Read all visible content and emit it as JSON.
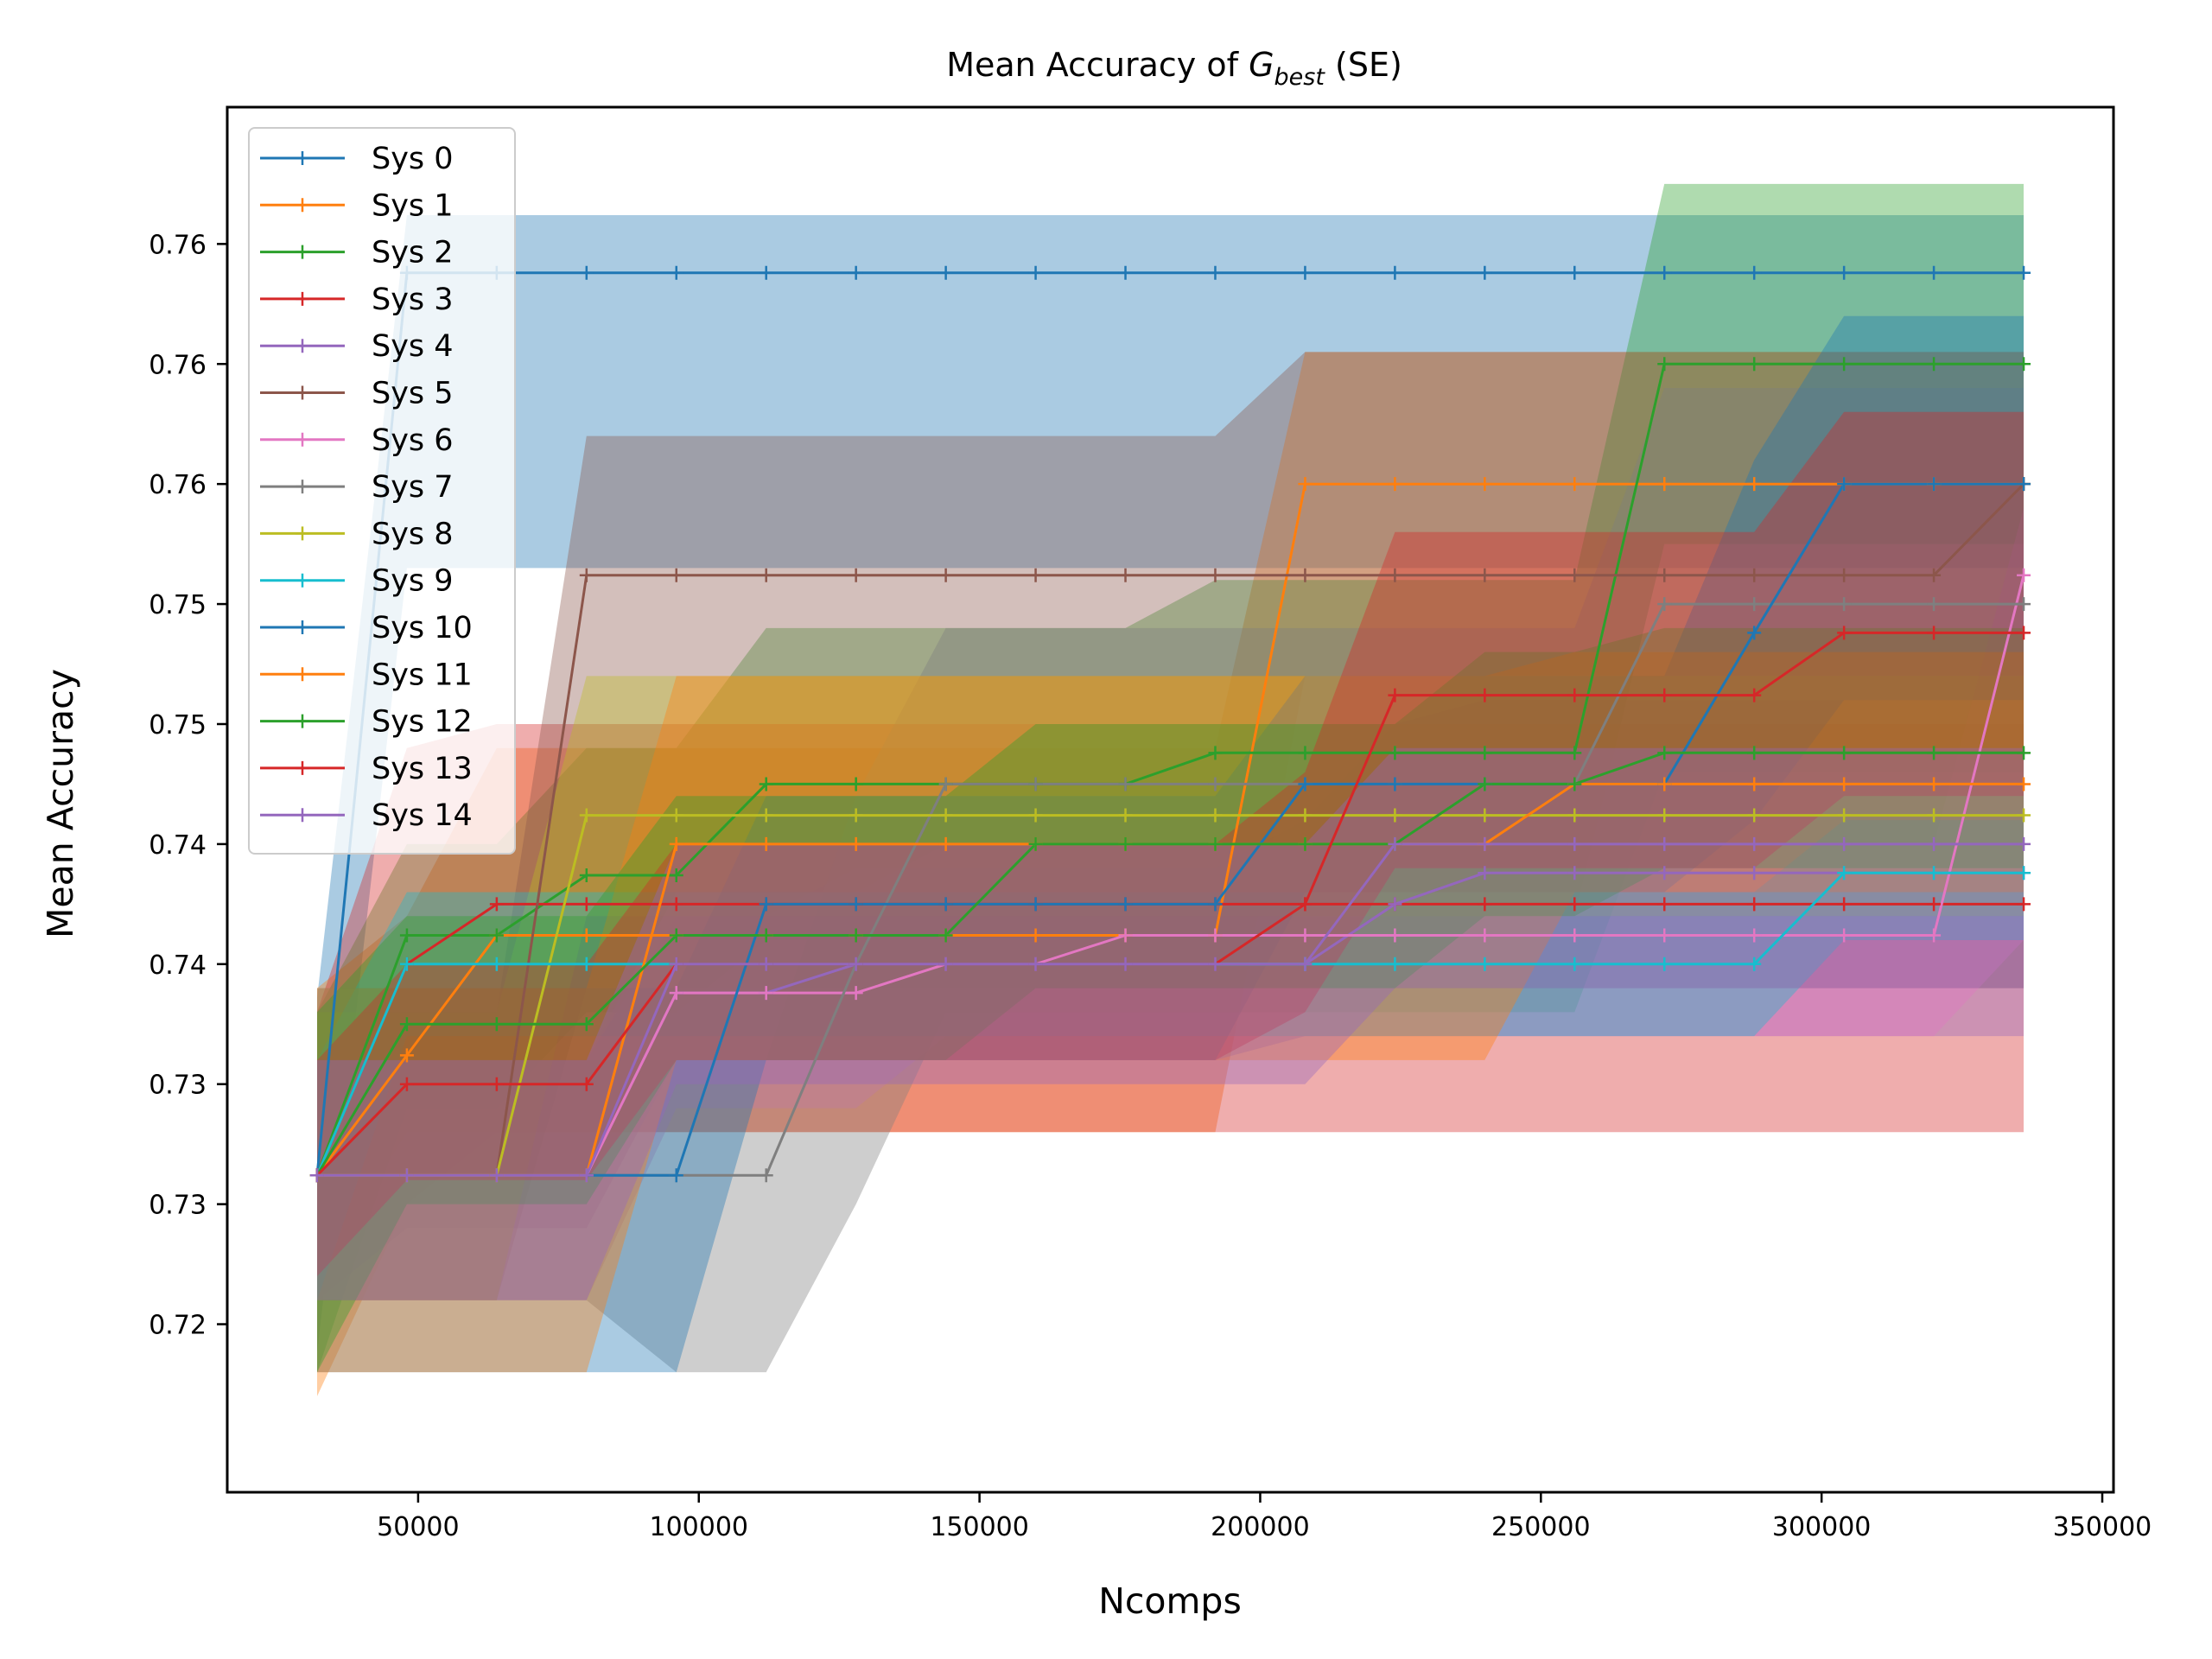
{
  "chart_data": {
    "type": "line",
    "title": {
      "main": "Mean Accuracy of ",
      "sym": "G",
      "sub": "best",
      "tail": "  (SE)"
    },
    "xlabel": "Ncomps",
    "ylabel": "Mean Accuracy",
    "xlim": [
      16000,
      352000
    ],
    "ylim": [
      0.713,
      0.7707
    ],
    "x_ticks": [
      50000,
      100000,
      150000,
      200000,
      250000,
      300000,
      350000
    ],
    "x_tick_labels": [
      "50000",
      "100000",
      "150000",
      "200000",
      "250000",
      "300000",
      "350000"
    ],
    "y_ticks": [
      0.72,
      0.725,
      0.73,
      0.735,
      0.74,
      0.745,
      0.75,
      0.755,
      0.76,
      0.765
    ],
    "y_tick_labels": [
      "0.72",
      "0.73",
      "0.73",
      "0.74",
      "0.74",
      "0.75",
      "0.75",
      "0.76",
      "0.76",
      "0.76"
    ],
    "legend_position": "upper-left",
    "x": [
      32000,
      48000,
      64000,
      80000,
      96000,
      112000,
      128000,
      144000,
      160000,
      176000,
      192000,
      208000,
      224000,
      240000,
      256000,
      272000,
      288000,
      304000,
      320000,
      336000
    ],
    "series": [
      {
        "name": "Sys 0",
        "color": "#1f77b4",
        "values": [
          0.7262,
          0.7638,
          0.7638,
          0.7638,
          0.7638,
          0.7638,
          0.7638,
          0.7638,
          0.7638,
          0.7638,
          0.7638,
          0.7638,
          0.7638,
          0.7638,
          0.7638,
          0.7638,
          0.7638,
          0.7638,
          0.7638,
          0.7638
        ],
        "lower": [
          0.7188,
          0.7515,
          0.7515,
          0.7515,
          0.7515,
          0.7515,
          0.7515,
          0.7515,
          0.7515,
          0.7515,
          0.7515,
          0.7515,
          0.7515,
          0.7515,
          0.7515,
          0.7515,
          0.7515,
          0.7515,
          0.7515,
          0.7515
        ],
        "upper": [
          0.7336,
          0.7662,
          0.7662,
          0.7662,
          0.7662,
          0.7662,
          0.7662,
          0.7662,
          0.7662,
          0.7662,
          0.7662,
          0.7662,
          0.7662,
          0.7662,
          0.7662,
          0.7662,
          0.7662,
          0.7662,
          0.7662,
          0.7662
        ]
      },
      {
        "name": "Sys 1",
        "color": "#ff7f0e",
        "values": [
          0.7262,
          0.7312,
          0.7362,
          0.7362,
          0.7362,
          0.7362,
          0.7362,
          0.7362,
          0.7362,
          0.7362,
          0.7362,
          0.755,
          0.755,
          0.755,
          0.755,
          0.755,
          0.755,
          0.755,
          0.755,
          0.755
        ],
        "lower": [
          0.717,
          0.725,
          0.728,
          0.728,
          0.728,
          0.728,
          0.728,
          0.728,
          0.728,
          0.728,
          0.728,
          0.747,
          0.747,
          0.747,
          0.747,
          0.747,
          0.747,
          0.747,
          0.747,
          0.747
        ],
        "upper": [
          0.734,
          0.737,
          0.744,
          0.744,
          0.744,
          0.744,
          0.744,
          0.744,
          0.744,
          0.744,
          0.744,
          0.7605,
          0.7605,
          0.7605,
          0.7605,
          0.7605,
          0.7605,
          0.7605,
          0.7605,
          0.7605
        ]
      },
      {
        "name": "Sys 2",
        "color": "#2ca02c",
        "values": [
          0.7262,
          0.7362,
          0.7362,
          0.7387,
          0.7387,
          0.7425,
          0.7425,
          0.7425,
          0.7425,
          0.7425,
          0.7438,
          0.7438,
          0.7438,
          0.7438,
          0.7438,
          0.76,
          0.76,
          0.76,
          0.76,
          0.76
        ],
        "lower": [
          0.718,
          0.729,
          0.729,
          0.733,
          0.733,
          0.736,
          0.736,
          0.736,
          0.736,
          0.736,
          0.737,
          0.737,
          0.737,
          0.737,
          0.737,
          0.7525,
          0.7525,
          0.7525,
          0.7525,
          0.7525
        ],
        "upper": [
          0.733,
          0.74,
          0.74,
          0.744,
          0.744,
          0.749,
          0.749,
          0.749,
          0.749,
          0.749,
          0.751,
          0.751,
          0.751,
          0.751,
          0.751,
          0.7675,
          0.7675,
          0.7675,
          0.7675,
          0.7675
        ]
      },
      {
        "name": "Sys 3",
        "color": "#d62728",
        "values": [
          0.7262,
          0.735,
          0.7375,
          0.7375,
          0.7375,
          0.7375,
          0.7375,
          0.7375,
          0.7375,
          0.7375,
          0.7375,
          0.7375,
          0.7375,
          0.7375,
          0.7375,
          0.7375,
          0.7375,
          0.7375,
          0.7375,
          0.7375
        ],
        "lower": [
          0.722,
          0.728,
          0.728,
          0.728,
          0.728,
          0.728,
          0.728,
          0.728,
          0.728,
          0.728,
          0.728,
          0.728,
          0.728,
          0.728,
          0.728,
          0.728,
          0.728,
          0.728,
          0.728,
          0.728
        ],
        "upper": [
          0.733,
          0.744,
          0.745,
          0.745,
          0.745,
          0.745,
          0.745,
          0.745,
          0.745,
          0.745,
          0.745,
          0.745,
          0.745,
          0.745,
          0.745,
          0.745,
          0.745,
          0.745,
          0.745,
          0.745
        ]
      },
      {
        "name": "Sys 4",
        "color": "#9467bd",
        "values": [
          0.7262,
          0.7262,
          0.7262,
          0.7262,
          0.7338,
          0.7338,
          0.735,
          0.735,
          0.735,
          0.735,
          0.735,
          0.735,
          0.7375,
          0.7388,
          0.7388,
          0.7388,
          0.7388,
          0.7388,
          0.7388,
          0.7388
        ],
        "lower": [
          0.721,
          0.724,
          0.724,
          0.724,
          0.731,
          0.731,
          0.731,
          0.731,
          0.731,
          0.731,
          0.731,
          0.732,
          0.732,
          0.732,
          0.732,
          0.732,
          0.732,
          0.732,
          0.732,
          0.732
        ],
        "upper": [
          0.731,
          0.731,
          0.731,
          0.731,
          0.737,
          0.737,
          0.739,
          0.739,
          0.739,
          0.739,
          0.739,
          0.741,
          0.745,
          0.746,
          0.746,
          0.746,
          0.746,
          0.746,
          0.746,
          0.746
        ]
      },
      {
        "name": "Sys 5",
        "color": "#8c564b",
        "values": [
          0.7262,
          0.7262,
          0.7262,
          0.7512,
          0.7512,
          0.7512,
          0.7512,
          0.7512,
          0.7512,
          0.7512,
          0.7512,
          0.7512,
          0.7512,
          0.7512,
          0.7512,
          0.7512,
          0.7512,
          0.7512,
          0.7512,
          0.755
        ],
        "lower": [
          0.721,
          0.721,
          0.721,
          0.734,
          0.734,
          0.734,
          0.734,
          0.734,
          0.734,
          0.734,
          0.734,
          0.734,
          0.734,
          0.734,
          0.734,
          0.734,
          0.734,
          0.734,
          0.734,
          0.734
        ],
        "upper": [
          0.733,
          0.733,
          0.733,
          0.757,
          0.757,
          0.757,
          0.757,
          0.757,
          0.757,
          0.757,
          0.757,
          0.7605,
          0.7605,
          0.7605,
          0.7605,
          0.7605,
          0.7605,
          0.7605,
          0.7605,
          0.7605
        ]
      },
      {
        "name": "Sys 6",
        "color": "#e377c2",
        "values": [
          0.7262,
          0.7262,
          0.7262,
          0.7262,
          0.7338,
          0.7338,
          0.7338,
          0.735,
          0.735,
          0.7362,
          0.7362,
          0.7362,
          0.7362,
          0.7362,
          0.7362,
          0.7362,
          0.7362,
          0.7362,
          0.7362,
          0.7512
        ],
        "lower": [
          0.721,
          0.721,
          0.721,
          0.721,
          0.729,
          0.729,
          0.729,
          0.732,
          0.732,
          0.732,
          0.732,
          0.732,
          0.732,
          0.732,
          0.732,
          0.732,
          0.732,
          0.732,
          0.732,
          0.736
        ],
        "upper": [
          0.731,
          0.731,
          0.731,
          0.731,
          0.738,
          0.738,
          0.738,
          0.74,
          0.74,
          0.74,
          0.74,
          0.74,
          0.74,
          0.74,
          0.74,
          0.74,
          0.74,
          0.74,
          0.74,
          0.754
        ]
      },
      {
        "name": "Sys 7",
        "color": "#7f7f7f",
        "values": [
          0.7262,
          0.7262,
          0.7262,
          0.7262,
          0.7262,
          0.7262,
          0.735,
          0.7425,
          0.7425,
          0.7425,
          0.7425,
          0.7425,
          0.7425,
          0.7425,
          0.7425,
          0.75,
          0.75,
          0.75,
          0.75,
          0.75
        ],
        "lower": [
          0.721,
          0.721,
          0.721,
          0.721,
          0.718,
          0.718,
          0.725,
          0.733,
          0.733,
          0.733,
          0.733,
          0.733,
          0.733,
          0.733,
          0.733,
          0.743,
          0.743,
          0.743,
          0.743,
          0.743
        ],
        "upper": [
          0.731,
          0.731,
          0.731,
          0.731,
          0.731,
          0.731,
          0.742,
          0.749,
          0.749,
          0.749,
          0.749,
          0.749,
          0.749,
          0.749,
          0.749,
          0.759,
          0.759,
          0.759,
          0.759,
          0.759
        ]
      },
      {
        "name": "Sys 8",
        "color": "#bcbd22",
        "values": [
          0.7262,
          0.7262,
          0.7262,
          0.7412,
          0.7412,
          0.7412,
          0.7412,
          0.7412,
          0.7412,
          0.7412,
          0.7412,
          0.7412,
          0.7412,
          0.7412,
          0.7412,
          0.7412,
          0.7412,
          0.7412,
          0.7412,
          0.7412
        ],
        "lower": [
          0.721,
          0.721,
          0.721,
          0.737,
          0.737,
          0.737,
          0.737,
          0.737,
          0.737,
          0.737,
          0.737,
          0.737,
          0.737,
          0.737,
          0.737,
          0.737,
          0.737,
          0.737,
          0.737,
          0.737
        ],
        "upper": [
          0.733,
          0.733,
          0.733,
          0.747,
          0.747,
          0.747,
          0.747,
          0.747,
          0.747,
          0.747,
          0.747,
          0.747,
          0.747,
          0.747,
          0.747,
          0.747,
          0.747,
          0.747,
          0.747,
          0.747
        ]
      },
      {
        "name": "Sys 9",
        "color": "#17becf",
        "values": [
          0.7262,
          0.735,
          0.735,
          0.735,
          0.735,
          0.735,
          0.735,
          0.735,
          0.735,
          0.735,
          0.735,
          0.735,
          0.735,
          0.735,
          0.735,
          0.735,
          0.735,
          0.7388,
          0.7388,
          0.7388
        ],
        "lower": [
          0.721,
          0.732,
          0.732,
          0.732,
          0.732,
          0.732,
          0.732,
          0.732,
          0.732,
          0.732,
          0.732,
          0.732,
          0.732,
          0.732,
          0.732,
          0.732,
          0.732,
          0.736,
          0.736,
          0.736
        ],
        "upper": [
          0.731,
          0.738,
          0.738,
          0.738,
          0.738,
          0.738,
          0.738,
          0.738,
          0.738,
          0.738,
          0.738,
          0.738,
          0.738,
          0.738,
          0.738,
          0.738,
          0.738,
          0.741,
          0.741,
          0.741
        ]
      },
      {
        "name": "Sys 10",
        "color": "#1f77b4",
        "values": [
          0.7262,
          0.7262,
          0.7262,
          0.7262,
          0.7262,
          0.7375,
          0.7375,
          0.7375,
          0.7375,
          0.7375,
          0.7375,
          0.7425,
          0.7425,
          0.7425,
          0.7425,
          0.7425,
          0.7488,
          0.755,
          0.755,
          0.755
        ],
        "lower": [
          0.718,
          0.718,
          0.718,
          0.718,
          0.718,
          0.731,
          0.731,
          0.731,
          0.731,
          0.731,
          0.731,
          0.738,
          0.738,
          0.738,
          0.738,
          0.738,
          0.741,
          0.746,
          0.746,
          0.746
        ],
        "upper": [
          0.734,
          0.734,
          0.734,
          0.734,
          0.734,
          0.742,
          0.742,
          0.742,
          0.742,
          0.742,
          0.742,
          0.747,
          0.747,
          0.747,
          0.747,
          0.747,
          0.756,
          0.762,
          0.762,
          0.762
        ]
      },
      {
        "name": "Sys 11",
        "color": "#ff7f0e",
        "values": [
          0.7262,
          0.7262,
          0.7262,
          0.7262,
          0.74,
          0.74,
          0.74,
          0.74,
          0.74,
          0.74,
          0.74,
          0.74,
          0.74,
          0.74,
          0.7425,
          0.7425,
          0.7425,
          0.7425,
          0.7425,
          0.7425
        ],
        "lower": [
          0.718,
          0.718,
          0.718,
          0.718,
          0.731,
          0.731,
          0.731,
          0.731,
          0.731,
          0.731,
          0.731,
          0.731,
          0.731,
          0.731,
          0.738,
          0.738,
          0.738,
          0.738,
          0.738,
          0.738
        ],
        "upper": [
          0.734,
          0.734,
          0.734,
          0.734,
          0.747,
          0.747,
          0.747,
          0.747,
          0.747,
          0.747,
          0.747,
          0.747,
          0.747,
          0.747,
          0.748,
          0.748,
          0.748,
          0.748,
          0.748,
          0.748
        ]
      },
      {
        "name": "Sys 12",
        "color": "#2ca02c",
        "values": [
          0.7262,
          0.7325,
          0.7325,
          0.7325,
          0.7362,
          0.7362,
          0.7362,
          0.7362,
          0.74,
          0.74,
          0.74,
          0.74,
          0.74,
          0.7425,
          0.7425,
          0.7438,
          0.7438,
          0.7438,
          0.7438,
          0.7438
        ],
        "lower": [
          0.718,
          0.725,
          0.725,
          0.725,
          0.731,
          0.731,
          0.731,
          0.731,
          0.734,
          0.734,
          0.734,
          0.734,
          0.734,
          0.737,
          0.737,
          0.739,
          0.739,
          0.739,
          0.739,
          0.739
        ],
        "upper": [
          0.733,
          0.737,
          0.737,
          0.737,
          0.742,
          0.742,
          0.742,
          0.742,
          0.745,
          0.745,
          0.745,
          0.745,
          0.745,
          0.748,
          0.748,
          0.749,
          0.749,
          0.749,
          0.749,
          0.749
        ]
      },
      {
        "name": "Sys 13",
        "color": "#d62728",
        "values": [
          0.7262,
          0.73,
          0.73,
          0.73,
          0.735,
          0.735,
          0.735,
          0.735,
          0.735,
          0.735,
          0.735,
          0.7375,
          0.7462,
          0.7462,
          0.7462,
          0.7462,
          0.7462,
          0.7488,
          0.7488,
          0.7488
        ],
        "lower": [
          0.722,
          0.726,
          0.726,
          0.726,
          0.731,
          0.731,
          0.731,
          0.731,
          0.731,
          0.731,
          0.731,
          0.733,
          0.739,
          0.739,
          0.739,
          0.739,
          0.739,
          0.742,
          0.742,
          0.742
        ],
        "upper": [
          0.731,
          0.735,
          0.735,
          0.735,
          0.74,
          0.74,
          0.74,
          0.74,
          0.74,
          0.74,
          0.74,
          0.743,
          0.753,
          0.753,
          0.753,
          0.753,
          0.753,
          0.758,
          0.758,
          0.758
        ]
      },
      {
        "name": "Sys 14",
        "color": "#9467bd",
        "values": [
          0.7262,
          0.7262,
          0.7262,
          0.7262,
          0.735,
          0.735,
          0.735,
          0.735,
          0.735,
          0.735,
          0.735,
          0.735,
          0.74,
          0.74,
          0.74,
          0.74,
          0.74,
          0.74,
          0.74,
          0.74
        ],
        "lower": [
          0.721,
          0.721,
          0.721,
          0.721,
          0.73,
          0.73,
          0.73,
          0.73,
          0.73,
          0.73,
          0.73,
          0.73,
          0.734,
          0.734,
          0.734,
          0.734,
          0.734,
          0.734,
          0.734,
          0.734
        ],
        "upper": [
          0.731,
          0.731,
          0.731,
          0.731,
          0.74,
          0.74,
          0.74,
          0.74,
          0.74,
          0.74,
          0.74,
          0.74,
          0.744,
          0.744,
          0.744,
          0.744,
          0.744,
          0.744,
          0.744,
          0.744
        ]
      }
    ]
  }
}
